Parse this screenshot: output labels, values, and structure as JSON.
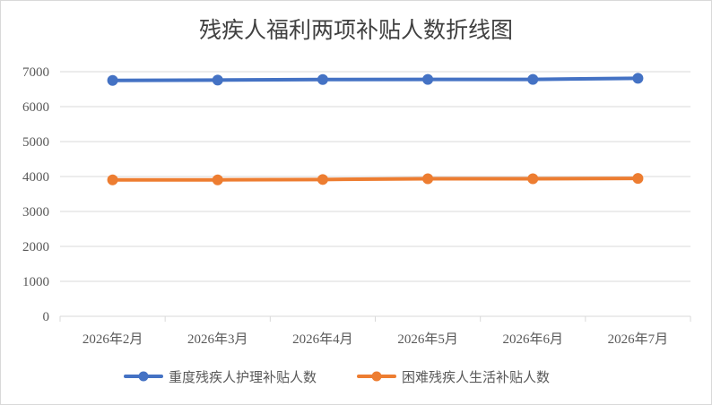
{
  "chart_data": {
    "type": "line",
    "title": "残疾人福利两项补贴人数折线图",
    "xlabel": "",
    "ylabel": "",
    "categories": [
      "2026年2月",
      "2026年3月",
      "2026年4月",
      "2026年5月",
      "2026年6月",
      "2026年7月"
    ],
    "ylim": [
      0,
      7000
    ],
    "yticks": [
      0,
      1000,
      2000,
      3000,
      4000,
      5000,
      6000,
      7000
    ],
    "grid": true,
    "legend_position": "bottom",
    "series": [
      {
        "name": "重度残疾人护理补贴人数",
        "color": "#4472C4",
        "values": [
          6750,
          6760,
          6775,
          6780,
          6780,
          6810
        ]
      },
      {
        "name": "困难残疾人生活补贴人数",
        "color": "#ED7D31",
        "values": [
          3905,
          3905,
          3915,
          3935,
          3935,
          3945
        ]
      }
    ]
  }
}
